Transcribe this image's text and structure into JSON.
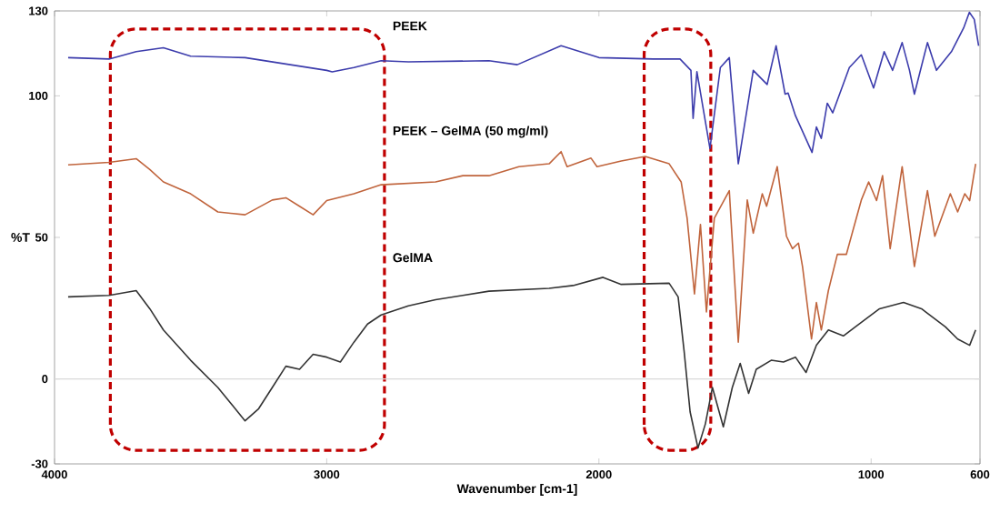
{
  "chart_data": {
    "type": "line",
    "xlabel": "Wavenumber [cm-1]",
    "ylabel": "%T",
    "xlim": [
      4000,
      600
    ],
    "ylim": [
      -30,
      130
    ],
    "xticks": [
      4000,
      3000,
      2000,
      1000,
      600
    ],
    "yticks": [
      -30,
      0,
      50,
      100,
      130
    ],
    "grid": false,
    "ref_lines": [
      {
        "axis": "y",
        "value": 0,
        "color": "#d9d9d9"
      }
    ],
    "series": [
      {
        "name": "PEEK",
        "color": "#3c3cac",
        "x": [
          3950,
          3800,
          3700,
          3600,
          3500,
          3300,
          3000,
          2980,
          2900,
          2800,
          2700,
          2404,
          2300,
          2139,
          2000,
          1801,
          1702,
          1662,
          1654,
          1640,
          1592,
          1554,
          1521,
          1488,
          1433,
          1382,
          1349,
          1316,
          1305,
          1278,
          1217,
          1201,
          1183,
          1161,
          1141,
          1080,
          1036,
          991,
          952,
          921,
          886,
          859,
          841,
          793,
          760,
          705,
          660,
          639,
          621,
          605
        ],
        "values": [
          113.5,
          113,
          115.6,
          117,
          114,
          113.5,
          109,
          108.5,
          110,
          112.4,
          112,
          112.4,
          111,
          117.7,
          113.5,
          113,
          113,
          109,
          92,
          108.5,
          81.4,
          110,
          113.5,
          76,
          109,
          104,
          117.7,
          100.6,
          101,
          93,
          80,
          89,
          85,
          97.4,
          94,
          110,
          114.5,
          102.8,
          115.6,
          109,
          118.8,
          109,
          100.6,
          118.8,
          109,
          115.6,
          124,
          129.5,
          127,
          117.7
        ]
      },
      {
        "name": "PEEK – GelMA (50 mg/ml)",
        "color": "#c0643c",
        "x": [
          3950,
          3800,
          3700,
          3650,
          3600,
          3500,
          3400,
          3300,
          3200,
          3150,
          3100,
          3050,
          3000,
          2900,
          2800,
          2600,
          2500,
          2404,
          2294,
          2183,
          2139,
          2117,
          2029,
          2007,
          1918,
          1830,
          1742,
          1698,
          1676,
          1649,
          1627,
          1605,
          1576,
          1521,
          1488,
          1455,
          1433,
          1400,
          1384,
          1345,
          1311,
          1289,
          1267,
          1252,
          1219,
          1201,
          1183,
          1157,
          1124,
          1091,
          1036,
          1009,
          980,
          958,
          930,
          886,
          841,
          793,
          766,
          709,
          682,
          656,
          638,
          616
        ],
        "values": [
          75.6,
          76.5,
          77.8,
          74,
          69.6,
          65.4,
          59,
          58,
          63.2,
          64,
          61,
          58,
          63,
          65.4,
          68.6,
          69.6,
          71.8,
          71.8,
          75,
          76,
          80.3,
          75,
          78,
          75,
          77,
          78.6,
          76,
          69.6,
          56.8,
          30,
          54.6,
          23.7,
          56.8,
          66.5,
          13,
          63.2,
          51.5,
          65.4,
          61,
          75,
          50.4,
          46,
          48,
          39.7,
          14.1,
          27,
          17.3,
          31.2,
          44,
          44,
          63.2,
          69.6,
          63,
          71.8,
          46,
          75,
          39.7,
          66.5,
          50.4,
          65.4,
          59,
          65.4,
          63,
          76
        ]
      },
      {
        "name": "GelMA",
        "color": "#333333",
        "x": [
          3950,
          3800,
          3700,
          3650,
          3600,
          3500,
          3400,
          3300,
          3250,
          3200,
          3150,
          3100,
          3050,
          3000,
          2950,
          2900,
          2850,
          2800,
          2700,
          2600,
          2500,
          2404,
          2183,
          2095,
          1985,
          1918,
          1742,
          1709,
          1687,
          1665,
          1636,
          1609,
          1583,
          1543,
          1510,
          1481,
          1450,
          1422,
          1367,
          1322,
          1278,
          1239,
          1201,
          1157,
          1102,
          1058,
          969,
          881,
          815,
          727,
          682,
          638,
          616
        ],
        "values": [
          29,
          29.5,
          31.2,
          24.8,
          17.3,
          6.6,
          -3,
          -14.8,
          -10.5,
          -3,
          4.5,
          3.4,
          8.7,
          7.7,
          6,
          13,
          19.4,
          22.6,
          25.8,
          28,
          29.5,
          31,
          32,
          33,
          35.9,
          33.4,
          33.8,
          29,
          9.8,
          -11.6,
          -24.4,
          -15.9,
          -3,
          -16.9,
          -3,
          5.5,
          -5.1,
          3.4,
          6.6,
          6,
          7.7,
          2.3,
          11.9,
          17.3,
          15.2,
          18.4,
          24.8,
          27,
          24.8,
          18.4,
          14.1,
          11.9,
          17.3
        ]
      }
    ]
  }
}
